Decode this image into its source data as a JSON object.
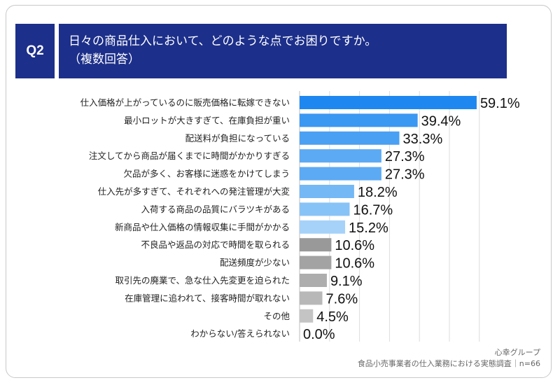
{
  "header": {
    "badge": "Q2",
    "question_line1": "日々の商品仕入において、どのような点でお困りですか。",
    "question_line2": "（複数回答）"
  },
  "footer": {
    "brand": "心幸グループ",
    "survey": "食品小売事業者の仕入業務における実態調査｜n=66"
  },
  "chart_data": {
    "type": "bar",
    "orientation": "horizontal",
    "unit": "%",
    "categories": [
      "仕入価格が上がっているのに販売価格に転嫁できない",
      "最小ロットが大きすぎて、在庫負担が重い",
      "配送料が負担になっている",
      "注文してから商品が届くまでに時間がかかりすぎる",
      "欠品が多く、お客様に迷惑をかけてしまう",
      "仕入先が多すぎて、それぞれへの発注管理が大変",
      "入荷する商品の品質にバラツキがある",
      "新商品や仕入価格の情報収集に手間がかかる",
      "不良品や返品の対応で時間を取られる",
      "配送頻度が少ない",
      "取引先の廃業で、急な仕入先変更を迫られた",
      "在庫管理に追われて、接客時間が取れない",
      "その他",
      "わからない/答えられない"
    ],
    "values": [
      59.1,
      39.4,
      33.3,
      27.3,
      27.3,
      18.2,
      16.7,
      15.2,
      10.6,
      10.6,
      9.1,
      7.6,
      4.5,
      0.0
    ],
    "labels": [
      "59.1%",
      "39.4%",
      "33.3%",
      "27.3%",
      "27.3%",
      "18.2%",
      "16.7%",
      "15.2%",
      "10.6%",
      "10.6%",
      "9.1%",
      "7.6%",
      "4.5%",
      "0.0%"
    ],
    "colors": [
      "#1e88f0",
      "#3a97f2",
      "#4aa0f3",
      "#5caaf4",
      "#5caaf4",
      "#74b8f6",
      "#88c3f7",
      "#a6d2f9",
      "#999999",
      "#a3a3a3",
      "#adadad",
      "#b8b8b8",
      "#c4c4c4",
      "#cfcfcf"
    ],
    "xlim": [
      0,
      60
    ],
    "grid": true
  }
}
